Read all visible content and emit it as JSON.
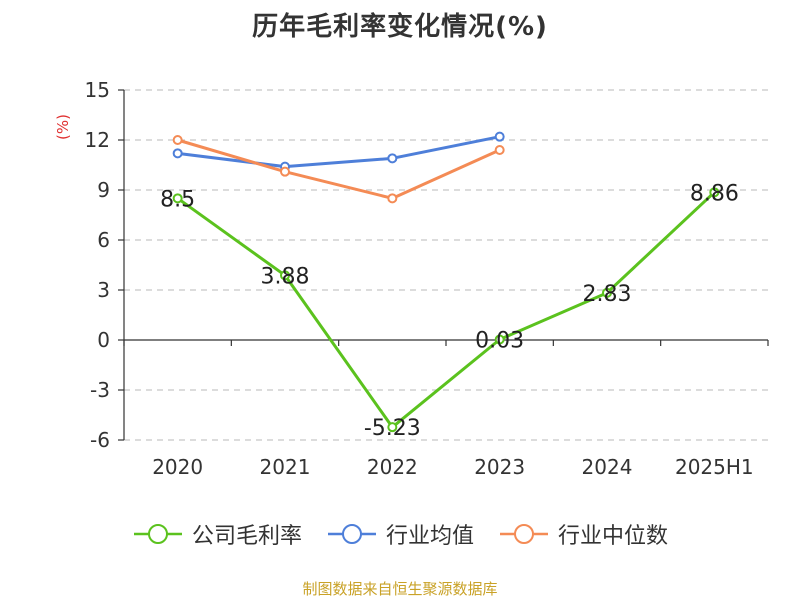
{
  "chart_data": {
    "type": "line",
    "title": "历年毛利率变化情况(%)",
    "ylabel": "(%)",
    "categories": [
      "2020",
      "2021",
      "2022",
      "2023",
      "2024",
      "2025H1"
    ],
    "ylim": [
      -6,
      15
    ],
    "yticks": [
      -6,
      -3,
      0,
      3,
      6,
      9,
      12,
      15
    ],
    "ytick_labels": [
      "-6",
      "-3",
      "0",
      "3",
      "6",
      "9",
      "12",
      "15"
    ],
    "grid": true,
    "legend_position": "bottom",
    "series": [
      {
        "name": "公司毛利率",
        "color": "#5bc21e",
        "values": [
          8.5,
          3.88,
          -5.23,
          0.03,
          2.83,
          8.86
        ],
        "labels": [
          "8.5",
          "3.88",
          "-5.23",
          "0.03",
          "2.83",
          "8.86"
        ]
      },
      {
        "name": "行业均值",
        "color": "#4e7fd9",
        "values": [
          11.2,
          10.4,
          10.9,
          12.2,
          null,
          null
        ]
      },
      {
        "name": "行业中位数",
        "color": "#f48b55",
        "values": [
          12.0,
          10.1,
          8.5,
          11.4,
          null,
          null
        ]
      }
    ]
  },
  "colors": {
    "ylabel": "#e03030",
    "source": "#c9a227"
  },
  "source": "制图数据来自恒生聚源数据库"
}
